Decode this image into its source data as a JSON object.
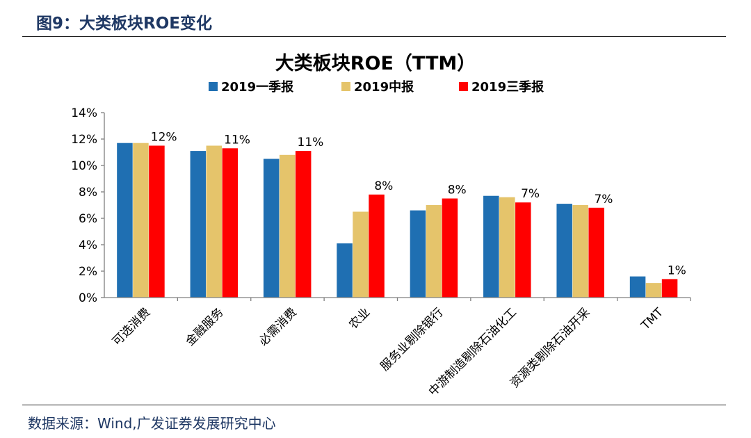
{
  "figure": {
    "caption": "图9：大类板块ROE变化",
    "source": "数据来源：Wind,广发证券发展研究中心"
  },
  "chart_data": {
    "type": "bar",
    "title": "大类板块ROE（TTM）",
    "xlabel": "",
    "ylabel": "",
    "ylim": [
      0,
      14
    ],
    "yticks": [
      "0%",
      "2%",
      "4%",
      "6%",
      "8%",
      "10%",
      "12%",
      "14%"
    ],
    "grid": false,
    "legend_position": "top-center",
    "categories": [
      "可选消费",
      "金融服务",
      "必需消费",
      "农业",
      "服务业剔除银行",
      "中游制造剔除石油化工",
      "资源类剔除石油开采",
      "TMT"
    ],
    "series": [
      {
        "name": "2019一季报",
        "color": "#1f6fb2",
        "values": [
          11.7,
          11.1,
          10.5,
          4.1,
          6.6,
          7.7,
          7.1,
          1.6
        ]
      },
      {
        "name": "2019中报",
        "color": "#e5c46b",
        "values": [
          11.7,
          11.5,
          10.8,
          6.5,
          7.0,
          7.6,
          7.0,
          1.1
        ]
      },
      {
        "name": "2019三季报",
        "color": "#ff0000",
        "values": [
          11.5,
          11.3,
          11.1,
          7.8,
          7.5,
          7.2,
          6.8,
          1.4
        ]
      }
    ],
    "data_labels": [
      "12%",
      "11%",
      "11%",
      "8%",
      "8%",
      "7%",
      "7%",
      "1%"
    ]
  }
}
